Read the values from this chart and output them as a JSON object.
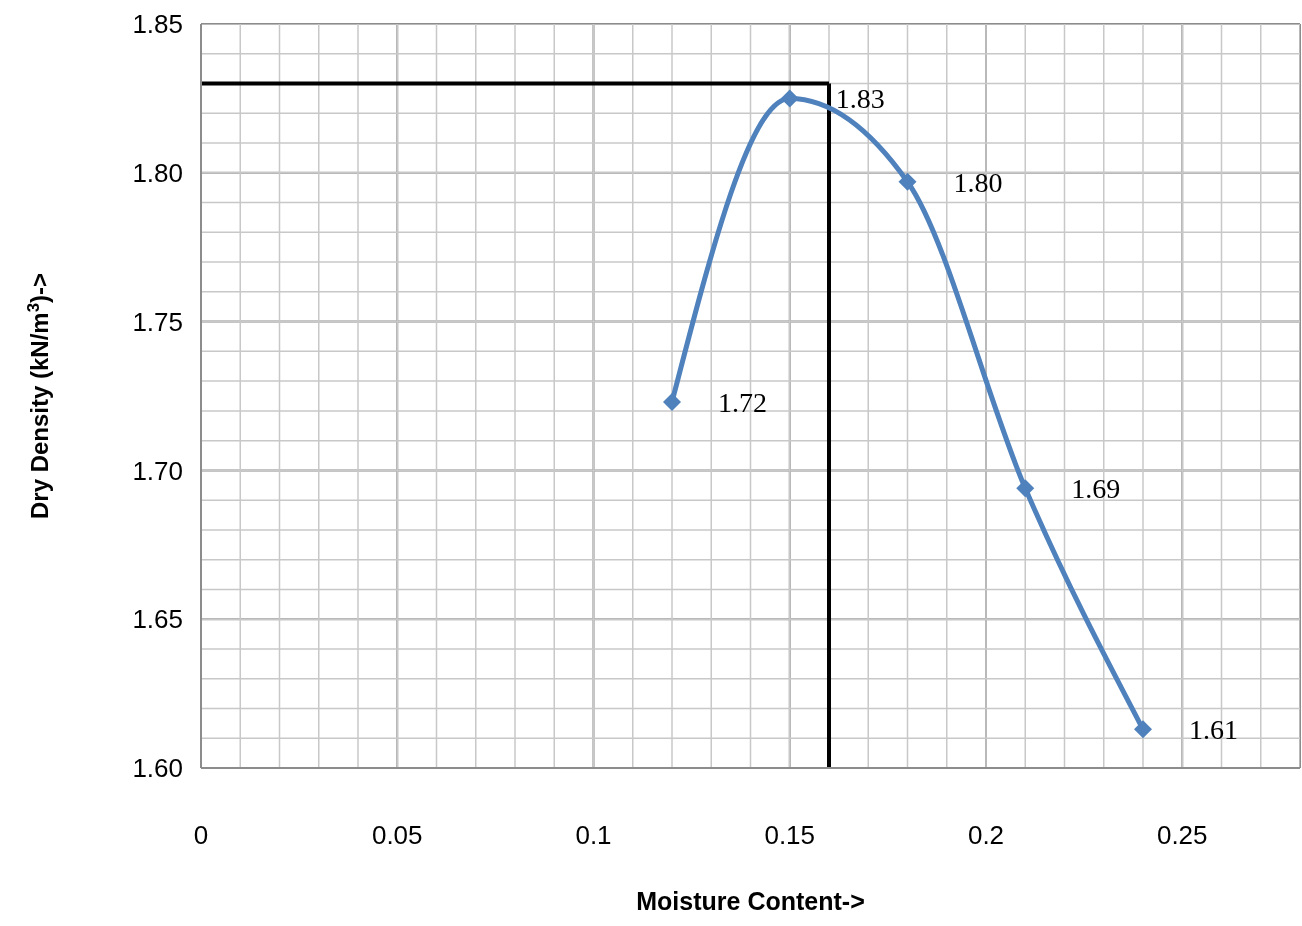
{
  "chart_data": {
    "type": "line",
    "xlabel": "Moisture Content->",
    "ylabel": "Dry Density (kN/m$^{3}$)->",
    "x": [
      0.12,
      0.15,
      0.18,
      0.21,
      0.24
    ],
    "series": [
      {
        "color": "#4f81bd",
        "values": [
          1.723,
          1.825,
          1.797,
          1.694,
          1.613
        ],
        "value_labels": [
          "1.72",
          "1.83",
          "1.80",
          "1.69",
          "1.61"
        ]
      }
    ],
    "xlim": [
      0,
      0.28
    ],
    "xticks": [
      0,
      0.05,
      0.1,
      0.15,
      0.2,
      0.25
    ],
    "ylim": [
      1.6,
      1.85
    ],
    "yticks": [
      {
        "value": 1.6,
        "label": "1.60"
      },
      1.65,
      {
        "value": 1.7,
        "label": "1.70"
      },
      1.75,
      {
        "value": 1.8,
        "label": "1.80"
      },
      1.85
    ],
    "ref_lines": [
      {
        "axis": "y",
        "value": 1.83,
        "color": "#000000"
      },
      {
        "axis": "x",
        "value": 0.16,
        "color": "#000000"
      }
    ],
    "grid": true,
    "marker": "diamond",
    "line_style": "solid"
  }
}
